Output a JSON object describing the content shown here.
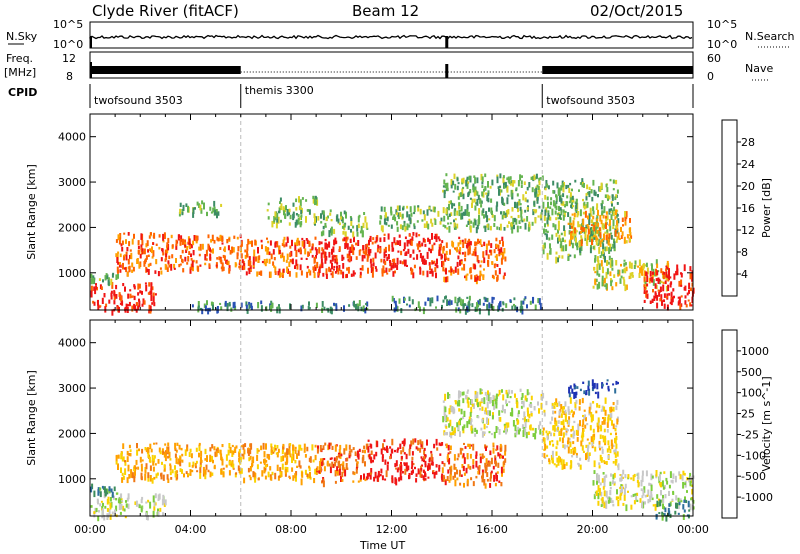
{
  "header": {
    "station": "Clyde River (fitACF)",
    "beam": "Beam 12",
    "date": "02/Oct/2015"
  },
  "top_panels": {
    "nsky_label": "N.Sky",
    "nsky_ticks": [
      "10^5",
      "10^0"
    ],
    "nsearch_label": "N.Search",
    "nsearch_ticks": [
      "10^5",
      "10^0"
    ],
    "freq_label": "Freq.",
    "freq_unit": "[MHz]",
    "freq_ticks": [
      "12",
      "8"
    ],
    "nave_label": "Nave",
    "nave_ticks": [
      "60",
      "0"
    ],
    "cpid_label": "CPID",
    "cpid_segments": [
      {
        "name": "twofsound 3503",
        "start": 0.0,
        "end": 6.0
      },
      {
        "name": "themis 3300",
        "start": 6.0,
        "end": 18.0
      },
      {
        "name": "twofsound 3503",
        "start": 18.0,
        "end": 24.0
      }
    ]
  },
  "chart_data": [
    {
      "type": "heatmap",
      "name": "power",
      "ylabel": "Slant Range [km]",
      "xlabel": "",
      "xlim": [
        0,
        24
      ],
      "ylim": [
        180,
        4500
      ],
      "y_ticks": [
        1000,
        2000,
        3000,
        4000
      ],
      "colorbar_label": "Power [dB]",
      "colorbar_ticks": [
        "4",
        "8",
        "12",
        "16",
        "20",
        "24",
        "28"
      ],
      "colors": [
        "#1a1aff",
        "#2850b4",
        "#3c8c64",
        "#64b450",
        "#dcd228",
        "#ffa000",
        "#ff6400",
        "#f01414"
      ],
      "regions": [
        {
          "t0": 0.0,
          "t1": 2.6,
          "r0": 180,
          "r1": 800,
          "level": 7
        },
        {
          "t0": 0.0,
          "t1": 1.2,
          "r0": 800,
          "r1": 1000,
          "level": 3
        },
        {
          "t0": 1.0,
          "t1": 3.2,
          "r0": 1000,
          "r1": 1900,
          "level": 6
        },
        {
          "t0": 3.2,
          "t1": 6.0,
          "r0": 1100,
          "r1": 1850,
          "level": 6
        },
        {
          "t0": 3.5,
          "t1": 5.2,
          "r0": 2300,
          "r1": 2600,
          "level": 3
        },
        {
          "t0": 6.0,
          "t1": 9.0,
          "r0": 1000,
          "r1": 1800,
          "level": 6
        },
        {
          "t0": 7.0,
          "t1": 9.0,
          "r0": 2100,
          "r1": 2700,
          "level": 3
        },
        {
          "t0": 9.0,
          "t1": 11.0,
          "r0": 950,
          "r1": 1800,
          "level": 7
        },
        {
          "t0": 9.0,
          "t1": 11.0,
          "r0": 1900,
          "r1": 2400,
          "level": 3
        },
        {
          "t0": 11.0,
          "t1": 14.0,
          "r0": 1000,
          "r1": 1900,
          "level": 7
        },
        {
          "t0": 11.5,
          "t1": 14.0,
          "r0": 2000,
          "r1": 2500,
          "level": 3
        },
        {
          "t0": 14.0,
          "t1": 16.5,
          "r0": 900,
          "r1": 1800,
          "level": 6
        },
        {
          "t0": 14.0,
          "t1": 18.0,
          "r0": 2000,
          "r1": 3200,
          "level": 3
        },
        {
          "t0": 18.0,
          "t1": 21.0,
          "r0": 1300,
          "r1": 3100,
          "level": 3
        },
        {
          "t0": 19.0,
          "t1": 21.5,
          "r0": 1700,
          "r1": 2400,
          "level": 5
        },
        {
          "t0": 20.0,
          "t1": 23.0,
          "r0": 700,
          "r1": 1300,
          "level": 4
        },
        {
          "t0": 22.0,
          "t1": 24.0,
          "r0": 300,
          "r1": 1200,
          "level": 7
        },
        {
          "t0": 12.0,
          "t1": 18.0,
          "r0": 200,
          "r1": 500,
          "level": 2
        },
        {
          "t0": 4.0,
          "t1": 11.0,
          "r0": 200,
          "r1": 400,
          "level": 2
        }
      ]
    },
    {
      "type": "heatmap",
      "name": "velocity",
      "ylabel": "Slant Range [km]",
      "xlabel": "Time UT",
      "xlim": [
        0,
        24
      ],
      "ylim": [
        180,
        4500
      ],
      "x_ticks": [
        "00:00",
        "04:00",
        "08:00",
        "12:00",
        "16:00",
        "20:00",
        "00:00"
      ],
      "y_ticks": [
        1000,
        2000,
        3000,
        4000
      ],
      "colorbar_label": "Velocity [m s^-1]",
      "colorbar_ticks": [
        "1000",
        "500",
        "100",
        "25",
        "-25",
        "-100",
        "-500",
        "-1000"
      ],
      "colors": [
        "#1e32b4",
        "#2d6e9b",
        "#3c8c5a",
        "#7ccd3c",
        "#c8c8c8",
        "#fad200",
        "#ffa000",
        "#f07814",
        "#f01414"
      ],
      "regions": [
        {
          "t0": 0.0,
          "t1": 3.0,
          "r0": 180,
          "r1": 700,
          "level": 4
        },
        {
          "t0": 0.0,
          "t1": 1.0,
          "r0": 700,
          "r1": 900,
          "level": 2
        },
        {
          "t0": 1.0,
          "t1": 3.5,
          "r0": 1000,
          "r1": 1800,
          "level": 6
        },
        {
          "t0": 3.5,
          "t1": 6.0,
          "r0": 1100,
          "r1": 1800,
          "level": 6
        },
        {
          "t0": 6.0,
          "t1": 9.0,
          "r0": 1000,
          "r1": 1800,
          "level": 6
        },
        {
          "t0": 9.0,
          "t1": 11.0,
          "r0": 950,
          "r1": 1800,
          "level": 7
        },
        {
          "t0": 11.0,
          "t1": 14.0,
          "r0": 1000,
          "r1": 1900,
          "level": 8
        },
        {
          "t0": 14.0,
          "t1": 16.5,
          "r0": 900,
          "r1": 1800,
          "level": 7
        },
        {
          "t0": 14.0,
          "t1": 18.0,
          "r0": 2000,
          "r1": 3000,
          "level": 4
        },
        {
          "t0": 18.0,
          "t1": 21.0,
          "r0": 1300,
          "r1": 2800,
          "level": 5
        },
        {
          "t0": 20.0,
          "t1": 24.0,
          "r0": 400,
          "r1": 1200,
          "level": 4
        },
        {
          "t0": 22.5,
          "t1": 24.0,
          "r0": 200,
          "r1": 600,
          "level": 2
        },
        {
          "t0": 19.0,
          "t1": 21.0,
          "r0": 2900,
          "r1": 3200,
          "level": 0
        }
      ]
    }
  ]
}
